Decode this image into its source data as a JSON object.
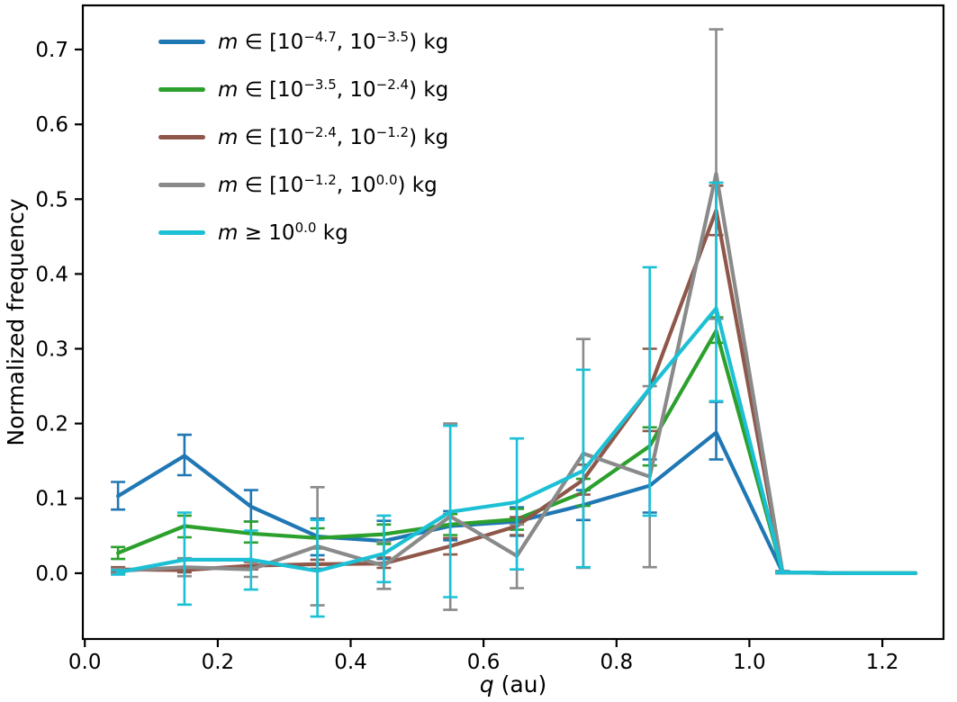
{
  "legend": {
    "position": "upper left",
    "items": [
      {
        "m": "m",
        "mid0": " ∈ [10",
        "s0": "−4.7",
        "mid1": ", 10",
        "s1": "−3.5",
        "end": ") kg",
        "color": "#1f77b4"
      },
      {
        "m": "m",
        "mid0": " ∈ [10",
        "s0": "−3.5",
        "mid1": ", 10",
        "s1": "−2.4",
        "end": ") kg",
        "color": "#2ca02c"
      },
      {
        "m": "m",
        "mid0": " ∈ [10",
        "s0": "−2.4",
        "mid1": ", 10",
        "s1": "−1.2",
        "end": ") kg",
        "color": "#8f574a"
      },
      {
        "m": "m",
        "mid0": " ∈ [10",
        "s0": "−1.2",
        "mid1": ", 10",
        "s1": "0.0",
        "end": ") kg",
        "color": "#8a8a8a"
      },
      {
        "m": "m",
        "mid0": " ≥ 10",
        "s0": "0.0",
        "end": " kg",
        "color": "#1cc0d5"
      }
    ]
  },
  "chart_data": {
    "type": "line",
    "title": "",
    "xlabel": "q (au)",
    "xlabel_q": "q",
    "xlabel_rest": " (au)",
    "ylabel": "Normalized frequency",
    "xlim": [
      -0.003,
      1.292
    ],
    "ylim": [
      -0.088,
      0.759
    ],
    "grid": false,
    "legend_position": "upper left",
    "x_ticks": [
      0.0,
      0.2,
      0.4,
      0.6,
      0.8,
      1.0,
      1.2
    ],
    "x_tick_labels": [
      "0.0",
      "0.2",
      "0.4",
      "0.6",
      "0.8",
      "1.0",
      "1.2"
    ],
    "y_ticks": [
      0.0,
      0.1,
      0.2,
      0.3,
      0.4,
      0.5,
      0.6,
      0.7
    ],
    "y_tick_labels": [
      "0.0",
      "0.1",
      "0.2",
      "0.3",
      "0.4",
      "0.5",
      "0.6",
      "0.7"
    ],
    "x": [
      0.05,
      0.15,
      0.25,
      0.35,
      0.45,
      0.55,
      0.65,
      0.75,
      0.85,
      0.95,
      1.05,
      1.15,
      1.25
    ],
    "series": [
      {
        "key": "blue",
        "name": "m in [1e-4.7, 1e-3.5) kg",
        "color": "#1f77b4",
        "values": [
          0.103,
          0.157,
          0.089,
          0.049,
          0.043,
          0.063,
          0.069,
          0.091,
          0.117,
          0.188,
          0.001,
          0.0,
          0.0
        ],
        "err_up": [
          0.122,
          0.185,
          0.111,
          0.073,
          0.07,
          0.083,
          0.088,
          0.111,
          0.152,
          0.229,
          0.003,
          null,
          null
        ],
        "err_dn": [
          0.085,
          0.131,
          0.069,
          0.024,
          0.019,
          0.044,
          0.05,
          0.071,
          0.081,
          0.152,
          0.0,
          null,
          null
        ]
      },
      {
        "key": "green",
        "name": "m in [1e-3.5, 1e-2.4) kg",
        "color": "#2ca02c",
        "values": [
          0.027,
          0.063,
          0.053,
          0.047,
          0.052,
          0.065,
          0.072,
          0.108,
          0.17,
          0.324,
          0.001,
          0.0,
          0.0
        ],
        "err_up": [
          0.035,
          0.077,
          0.069,
          0.06,
          0.065,
          0.079,
          0.086,
          0.126,
          0.195,
          0.342,
          0.002,
          null,
          null
        ],
        "err_dn": [
          0.019,
          0.048,
          0.041,
          0.033,
          0.039,
          0.051,
          0.058,
          0.09,
          0.144,
          0.308,
          0.0,
          null,
          null
        ]
      },
      {
        "key": "brown",
        "name": "m in [1e-2.4, 1e-1.2) kg",
        "color": "#8f574a",
        "values": [
          0.005,
          0.004,
          0.01,
          0.012,
          0.013,
          0.036,
          0.063,
          0.125,
          0.247,
          0.485,
          0.001,
          0.0,
          0.0
        ],
        "err_up": [
          0.008,
          0.007,
          0.015,
          0.018,
          0.021,
          0.047,
          0.075,
          0.145,
          0.3,
          0.518,
          0.002,
          null,
          null
        ],
        "err_dn": [
          0.002,
          0.001,
          0.005,
          0.006,
          0.007,
          0.025,
          0.051,
          0.105,
          0.19,
          0.452,
          0.0,
          null,
          null
        ]
      },
      {
        "key": "gray",
        "name": "m in [1e-1.2, 1e0.0) kg",
        "color": "#8a8a8a",
        "values": [
          0.003,
          0.008,
          0.005,
          0.036,
          0.01,
          0.076,
          0.023,
          0.16,
          0.129,
          0.534,
          0.001,
          0.0,
          0.0
        ],
        "err_up": [
          0.006,
          0.02,
          0.016,
          0.115,
          0.042,
          0.2,
          0.065,
          0.313,
          0.25,
          0.727,
          0.003,
          null,
          null
        ],
        "err_dn": [
          0.0,
          -0.004,
          -0.005,
          -0.043,
          -0.021,
          -0.049,
          -0.02,
          0.007,
          0.008,
          0.34,
          0.0,
          null,
          null
        ]
      },
      {
        "key": "cyan",
        "name": "m >= 1e0.0 kg",
        "color": "#1cc0d5",
        "values": [
          0.001,
          0.018,
          0.018,
          0.003,
          0.026,
          0.082,
          0.095,
          0.137,
          0.247,
          0.354,
          0.001,
          0.0,
          0.0
        ],
        "err_up": [
          0.004,
          0.081,
          0.057,
          0.071,
          0.077,
          0.197,
          0.18,
          0.272,
          0.409,
          0.522,
          0.002,
          null,
          null
        ],
        "err_dn": [
          -0.002,
          -0.042,
          -0.022,
          -0.058,
          -0.012,
          -0.032,
          0.005,
          0.008,
          0.077,
          0.23,
          0.0,
          null,
          null
        ]
      }
    ]
  }
}
